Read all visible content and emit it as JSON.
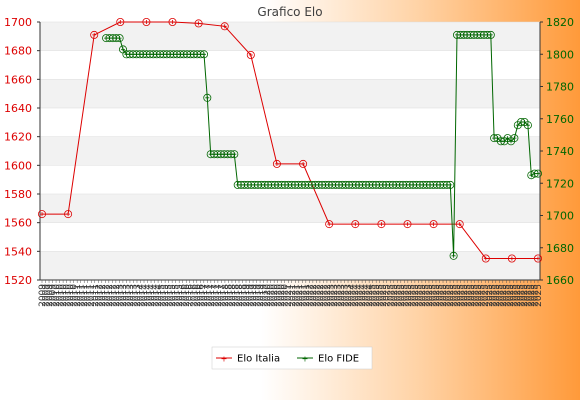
{
  "chart_data": {
    "type": "line",
    "title": "Grafico Elo",
    "colors": {
      "italia": "#dd0000",
      "fide": "#006600"
    },
    "grid": true,
    "legend_position": "bottom",
    "y_left": {
      "min": 1520,
      "max": 1700,
      "ticks": [
        1520,
        1540,
        1560,
        1580,
        1600,
        1620,
        1640,
        1660,
        1680,
        1700
      ]
    },
    "y_right": {
      "min": 1660,
      "max": 1820,
      "ticks": [
        1660,
        1680,
        1700,
        1720,
        1740,
        1760,
        1780,
        1800,
        1820
      ]
    },
    "x_tick_labels": [
      "2009",
      "2009",
      "2009",
      "2009",
      "2010",
      "2010",
      "2010",
      "2010",
      "2010",
      "2010",
      "2011",
      "2011",
      "2011",
      "2011",
      "2011",
      "2011",
      "2012",
      "2012",
      "2012",
      "2012",
      "2012",
      "2012",
      "2013",
      "2013",
      "2013",
      "2013",
      "2013",
      "2013",
      "2014",
      "2014",
      "2014",
      "2014",
      "2014",
      "2014",
      "2015",
      "2015",
      "2015",
      "2015",
      "2015",
      "2015",
      "2016",
      "2016",
      "2016",
      "2016",
      "2016",
      "2016",
      "2017",
      "2017",
      "2017",
      "2017",
      "2017",
      "2017",
      "2018",
      "2018",
      "2018",
      "2018",
      "2018",
      "2018",
      "2019",
      "2019",
      "2019",
      "2019",
      "2019",
      "2019",
      "2020",
      "2020",
      "2020",
      "2020",
      "2020",
      "2020",
      "2021",
      "2021",
      "2021",
      "2021",
      "2021",
      "2021",
      "2022",
      "2022",
      "2022",
      "2022",
      "2022",
      "2022",
      "2023",
      "2023",
      "2023",
      "2023",
      "2023",
      "2023",
      "2024",
      "2024",
      "2024",
      "2024",
      "2024",
      "2024",
      "2025",
      "2025",
      "2025",
      "2025",
      "2025",
      "2025",
      "2025",
      "2025",
      "2025",
      "2025",
      "2025",
      "2025",
      "2025",
      "2025",
      "2025",
      "2025",
      "2025",
      "2025",
      "2025",
      "2025",
      "2025",
      "2025",
      "2025",
      "2025",
      "2025",
      "2025",
      "2025",
      "2025",
      "2025",
      "2025",
      "2025",
      "2025",
      "2025",
      "2025",
      "2025",
      "2025",
      "2025",
      "2025",
      "2025",
      "2025",
      "2025",
      "2025",
      "2025",
      "2025",
      "2025",
      "2025",
      "2025",
      "2025"
    ],
    "series": [
      {
        "name": "Elo Italia",
        "axis": "left",
        "color": "#dd0000",
        "values": [
          1566,
          1566,
          1691,
          1700,
          1700,
          1700,
          1699,
          1697,
          1677,
          1601,
          1601,
          1559,
          1559,
          1559,
          1559,
          1559,
          1559,
          1535,
          1535,
          1535
        ]
      },
      {
        "name": "Elo FIDE",
        "axis": "right",
        "color": "#006600",
        "values": [
          null,
          null,
          null,
          null,
          null,
          null,
          null,
          null,
          null,
          null,
          null,
          null,
          null,
          null,
          null,
          null,
          null,
          null,
          null,
          1810,
          1810,
          1810,
          1810,
          1810,
          1803,
          1800,
          1800,
          1800,
          1800,
          1800,
          1800,
          1800,
          1800,
          1800,
          1800,
          1800,
          1800,
          1800,
          1800,
          1800,
          1800,
          1800,
          1800,
          1800,
          1800,
          1800,
          1800,
          1800,
          1800,
          1773,
          1738,
          1738,
          1738,
          1738,
          1738,
          1738,
          1738,
          1738,
          1719,
          1719,
          1719,
          1719,
          1719,
          1719,
          1719,
          1719,
          1719,
          1719,
          1719,
          1719,
          1719,
          1719,
          1719,
          1719,
          1719,
          1719,
          1719,
          1719,
          1719,
          1719,
          1719,
          1719,
          1719,
          1719,
          1719,
          1719,
          1719,
          1719,
          1719,
          1719,
          1719,
          1719,
          1719,
          1719,
          1719,
          1719,
          1719,
          1719,
          1719,
          1719,
          1719,
          1719,
          1719,
          1719,
          1719,
          1719,
          1719,
          1719,
          1719,
          1719,
          1719,
          1719,
          1719,
          1719,
          1719,
          1719,
          1719,
          1719,
          1719,
          1719,
          1719,
          1719,
          1675,
          1812,
          1812,
          1812,
          1812,
          1812,
          1812,
          1812,
          1812,
          1812,
          1812,
          1812,
          1748,
          1748,
          1746,
          1746,
          1748,
          1746,
          1748,
          1756,
          1758,
          1758,
          1756,
          1725,
          1726,
          1726
        ]
      }
    ]
  }
}
